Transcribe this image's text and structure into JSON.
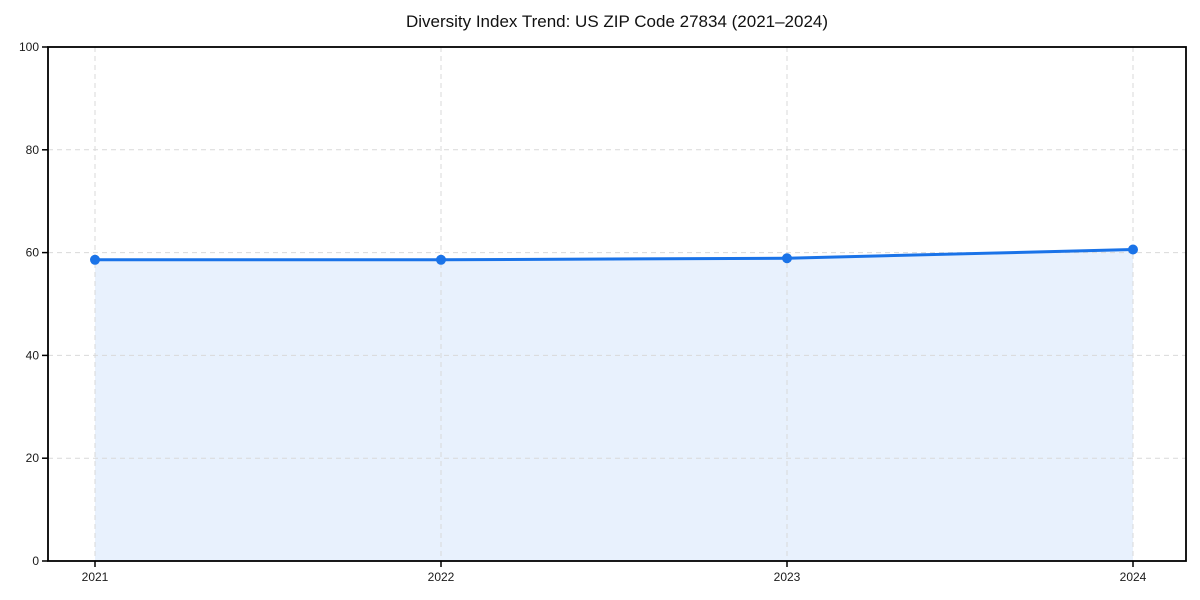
{
  "chart_data": {
    "type": "area",
    "title": "Diversity Index Trend: US ZIP Code 27834 (2021–2024)",
    "categories": [
      "2021",
      "2022",
      "2023",
      "2024"
    ],
    "values": [
      58.6,
      58.6,
      58.9,
      60.6
    ],
    "xlabel": "",
    "ylabel": "",
    "ylim": [
      0,
      100
    ],
    "yticks": [
      0,
      20,
      40,
      60,
      80,
      100
    ],
    "grid": "dashed",
    "legend": "none",
    "colors": {
      "line": "#1a73e8",
      "marker": "#1a73e8",
      "area_fill": "#e8f1fd",
      "grid": "#d9d9d9",
      "spine": "#000000",
      "tick_text": "#1a1a1a",
      "title_text": "#111111",
      "background": "#ffffff"
    }
  }
}
